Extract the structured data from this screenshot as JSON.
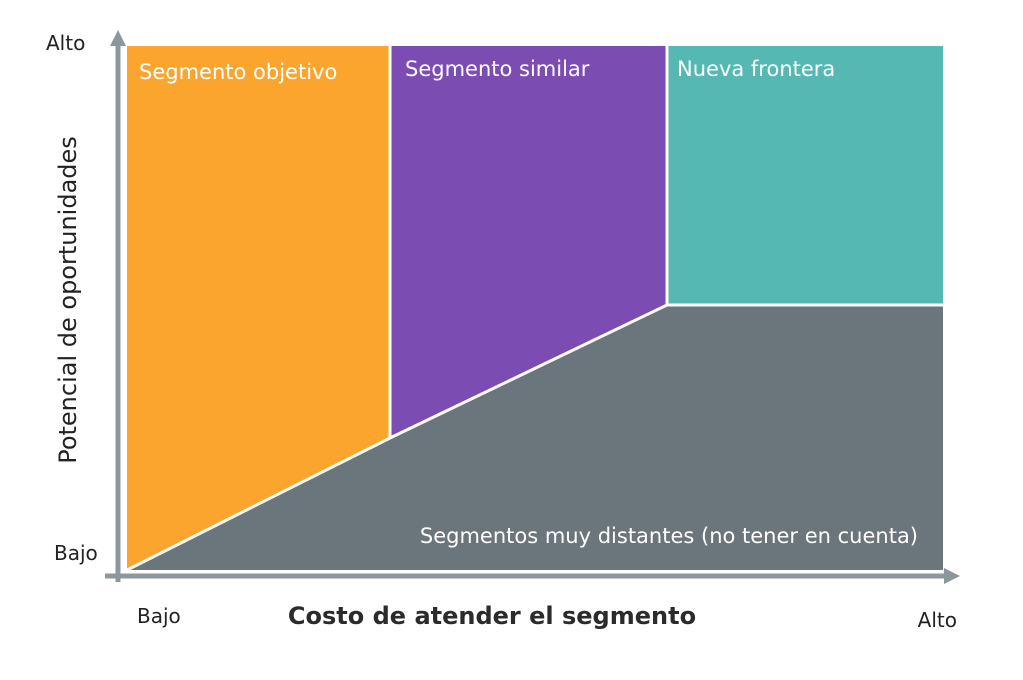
{
  "regions": {
    "target": {
      "label": "Segmento objetivo",
      "color": "#FBA52E"
    },
    "similar": {
      "label": "Segmento similar",
      "color": "#7B4DB3"
    },
    "frontier": {
      "label": "Nueva frontera",
      "color": "#55B8B2"
    },
    "distant": {
      "label": "Segmentos muy distantes (no tener en cuenta)",
      "color": "#6B757C"
    }
  },
  "axes": {
    "x_title": "Costo de atender el segmento",
    "x_low": "Bajo",
    "x_high": "Alto",
    "y_title": "Potencial de oportunidades",
    "y_low": "Bajo",
    "y_high": "Alto",
    "axis_color": "#8C979D"
  }
}
